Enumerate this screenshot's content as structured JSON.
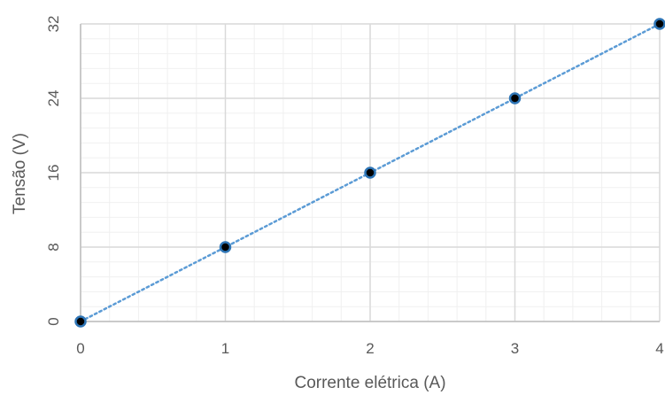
{
  "chart_data": {
    "type": "scatter",
    "title": "",
    "xlabel": "Corrente elétrica (A)",
    "ylabel": "Tensão (V)",
    "xlim": [
      0,
      4
    ],
    "ylim": [
      0,
      32
    ],
    "x_ticks": [
      "0",
      "1",
      "2",
      "3",
      "4"
    ],
    "y_ticks": [
      "0",
      "8",
      "16",
      "24",
      "32"
    ],
    "x_minor_step": 0.2,
    "y_minor_step": 1.6,
    "grid": true,
    "legend": "none",
    "trendline": "linear, dotted",
    "series": [
      {
        "x": [
          0,
          1,
          2,
          3,
          4
        ],
        "y": [
          0,
          8,
          16,
          24,
          32
        ]
      }
    ],
    "colors": {
      "marker_fill": "#000000",
      "marker_edge": "#2e75b6",
      "trendline": "#5b9bd5",
      "major_grid": "#d9d9d9",
      "minor_grid": "#f0f0f0",
      "axis_line": "#bfbfbf",
      "text": "#595959"
    }
  }
}
